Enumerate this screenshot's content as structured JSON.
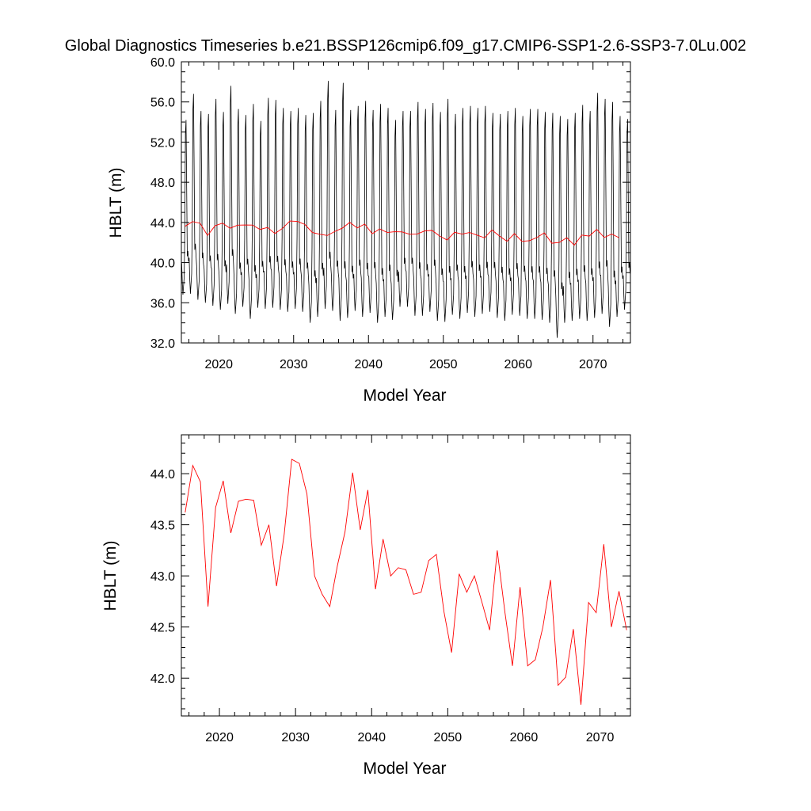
{
  "title": "Global Diagnostics Timeseries b.e21.BSSP126cmip6.f09_g17.CMIP6-SSP1-2.6-SSP3-7.0Lu.002",
  "colors": {
    "monthly": "#000000",
    "annual": "#ff0000"
  },
  "chart_data": [
    {
      "type": "line",
      "xlabel": "Model Year",
      "ylabel": "HBLT (m)",
      "xlim": [
        2015,
        2075
      ],
      "ylim": [
        32.0,
        60.0
      ],
      "xticks": [
        2020,
        2030,
        2040,
        2050,
        2060,
        2070
      ],
      "yticks": [
        32.0,
        36.0,
        40.0,
        44.0,
        48.0,
        52.0,
        56.0,
        60.0
      ],
      "monthly_peak_values": [
        54.2,
        56.8,
        55.1,
        54.8,
        56.3,
        55.0,
        57.6,
        55.3,
        54.7,
        55.8,
        54.1,
        56.4,
        56.2,
        55.4,
        55.1,
        55.4,
        54.7,
        54.9,
        56.1,
        58.1,
        55.2,
        57.9,
        55.2,
        55.6,
        56.1,
        55.2,
        55.8,
        55.4,
        54.2,
        55.1,
        55.1,
        56.0,
        55.3,
        55.9,
        55.0,
        56.3,
        54.8,
        55.4,
        55.6,
        55.4,
        55.6,
        54.9,
        54.8,
        55.1,
        55.4,
        54.6,
        55.3,
        55.3,
        55.0,
        54.9,
        54.6,
        54.3,
        54.9,
        55.7,
        55.1,
        56.9,
        56.3,
        56.0,
        54.6,
        54.3
      ],
      "monthly_trough_values": [
        36.8,
        36.9,
        36.3,
        36.0,
        35.7,
        35.3,
        35.9,
        34.9,
        35.6,
        34.4,
        35.5,
        35.4,
        35.5,
        35.3,
        35.1,
        35.4,
        35.1,
        34.0,
        34.6,
        35.4,
        35.2,
        34.2,
        34.5,
        35.2,
        34.6,
        35.0,
        34.0,
        34.6,
        34.3,
        35.6,
        35.6,
        34.7,
        34.7,
        35.1,
        34.2,
        34.1,
        34.8,
        34.4,
        35.0,
        34.6,
        34.9,
        35.1,
        34.5,
        34.2,
        34.8,
        34.7,
        34.4,
        34.4,
        34.3,
        34.0,
        32.5,
        34.0,
        34.2,
        34.4,
        34.2,
        34.5,
        34.9,
        33.6,
        34.6,
        35.3
      ],
      "annual_values": [
        43.62,
        44.08,
        43.92,
        42.7,
        43.67,
        43.93,
        43.42,
        43.73,
        43.75,
        43.74,
        43.3,
        43.5,
        42.9,
        43.4,
        44.14,
        44.1,
        43.8,
        43.0,
        42.82,
        42.7,
        43.1,
        43.43,
        44.01,
        43.45,
        43.84,
        42.87,
        43.36,
        43.0,
        43.08,
        43.06,
        42.82,
        42.84,
        43.15,
        43.21,
        42.65,
        42.25,
        43.02,
        42.84,
        43.0,
        42.74,
        42.47,
        43.25,
        42.65,
        42.12,
        42.89,
        42.12,
        42.18,
        42.5,
        42.96,
        41.93,
        42.01,
        42.48,
        41.74,
        42.74,
        42.64,
        43.31,
        42.5,
        42.85,
        42.47
      ]
    },
    {
      "type": "line",
      "xlabel": "Model Year",
      "ylabel": "HBLT (m)",
      "xlim": [
        2015,
        2074
      ],
      "ylim": [
        41.63,
        44.38
      ],
      "xticks": [
        2020,
        2030,
        2040,
        2050,
        2060,
        2070
      ],
      "yticks": [
        42.0,
        42.5,
        43.0,
        43.5,
        44.0
      ],
      "ytick_labels": [
        "42.0",
        "42.5",
        "43.0",
        "43.5",
        "44.0"
      ],
      "annual_values": [
        43.62,
        44.08,
        43.92,
        42.7,
        43.67,
        43.93,
        43.42,
        43.73,
        43.75,
        43.74,
        43.3,
        43.5,
        42.9,
        43.4,
        44.14,
        44.1,
        43.8,
        43.0,
        42.82,
        42.7,
        43.1,
        43.43,
        44.01,
        43.45,
        43.84,
        42.87,
        43.36,
        43.0,
        43.08,
        43.06,
        42.82,
        42.84,
        43.15,
        43.21,
        42.65,
        42.25,
        43.02,
        42.84,
        43.0,
        42.74,
        42.47,
        43.25,
        42.65,
        42.12,
        42.89,
        42.12,
        42.18,
        42.5,
        42.96,
        41.93,
        42.01,
        42.48,
        41.74,
        42.74,
        42.64,
        43.31,
        42.5,
        42.85,
        42.47
      ]
    }
  ]
}
